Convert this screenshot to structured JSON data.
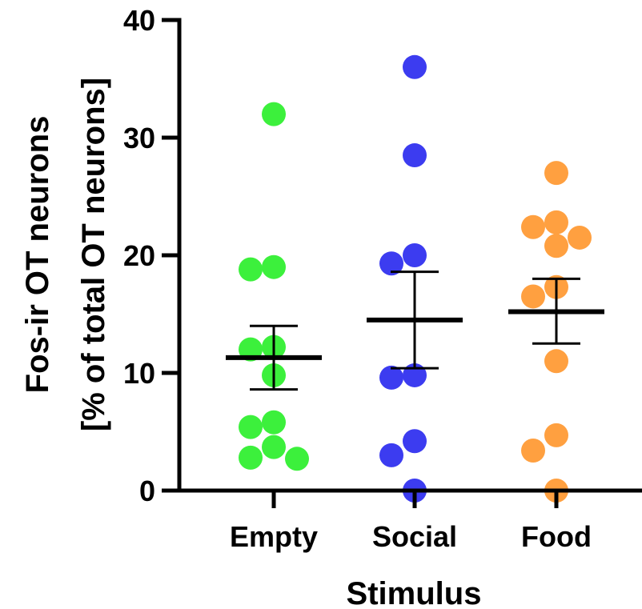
{
  "chart_data": {
    "type": "scatter",
    "subtype": "dot-plot-with-mean-sem",
    "xlabel": "Stimulus",
    "ylabel_line1": "Fos-ir OT neurons",
    "ylabel_line2": "[% of total OT neurons]",
    "ylim": [
      0,
      40
    ],
    "yticks": [
      "0",
      "10",
      "20",
      "30",
      "40"
    ],
    "grid": false,
    "categories": [
      "Empty",
      "Social",
      "Food"
    ],
    "series": [
      {
        "category": "Empty",
        "color": "#3cf03c",
        "points": [
          32,
          18.8,
          19,
          12,
          12.2,
          9.8,
          5.8,
          5.4,
          3.7,
          2.7,
          2.8
        ],
        "mean": 11.3,
        "sem_low": 8.6,
        "sem_high": 14.0
      },
      {
        "category": "Social",
        "color": "#3c3cf0",
        "points": [
          36,
          28.5,
          19.3,
          20,
          9.6,
          9.8,
          4.2,
          3.0,
          0
        ],
        "mean": 14.5,
        "sem_low": 10.4,
        "sem_high": 18.6
      },
      {
        "category": "Food",
        "color": "#ffa040",
        "points": [
          27,
          22.4,
          22.8,
          21.5,
          20.8,
          17.3,
          16.5,
          11.0,
          4.7,
          3.4,
          0
        ],
        "mean": 15.2,
        "sem_low": 12.5,
        "sem_high": 18.0
      }
    ]
  }
}
